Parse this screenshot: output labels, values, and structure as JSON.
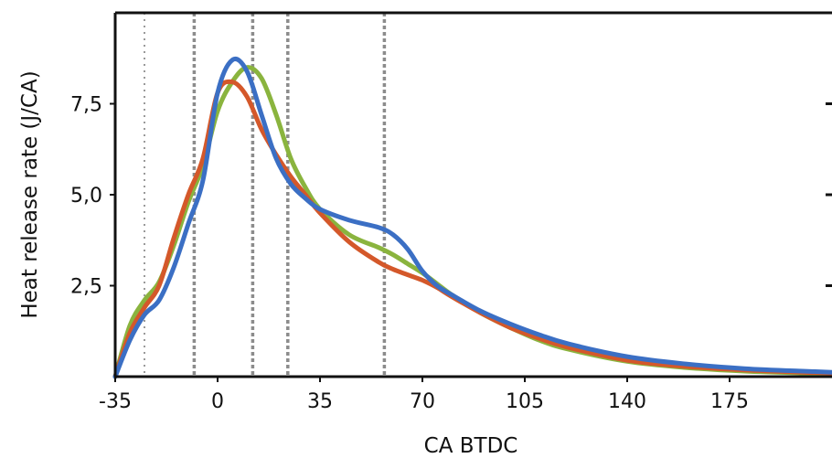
{
  "chart_data": {
    "type": "line",
    "title": "",
    "xlabel": "CA BTDC",
    "ylabel": "Heat release rate (J/CA)",
    "xlim": [
      -35,
      210
    ],
    "ylim": [
      0,
      10
    ],
    "x_ticks": [
      -35,
      0,
      35,
      70,
      105,
      140,
      175
    ],
    "x_tick_labels": [
      "-35",
      "0",
      "35",
      "70",
      "105",
      "140",
      "175"
    ],
    "y_ticks": [
      2.5,
      5.0,
      7.5
    ],
    "y_tick_labels": [
      "2,5",
      "5,0",
      "7,5"
    ],
    "grid": false,
    "legend": "none",
    "vertical_markers": [
      {
        "x": -25,
        "style": "dotted"
      },
      {
        "x": -8,
        "style": "dashed"
      },
      {
        "x": 12,
        "style": "dashed"
      },
      {
        "x": 24,
        "style": "dashed"
      },
      {
        "x": 57,
        "style": "dashed"
      }
    ],
    "series": [
      {
        "color": "#3b6fc4",
        "x": [
          -35,
          -30,
          -25,
          -20,
          -15,
          -10,
          -5,
          0,
          5,
          10,
          15,
          20,
          25,
          30,
          35,
          45,
          55,
          60,
          65,
          70,
          75,
          80,
          90,
          100,
          110,
          120,
          140,
          160,
          180,
          200,
          210
        ],
        "y": [
          0,
          1.0,
          1.7,
          2.1,
          3.0,
          4.2,
          5.4,
          7.8,
          8.7,
          8.4,
          7.2,
          6.0,
          5.3,
          4.9,
          4.6,
          4.3,
          4.1,
          3.9,
          3.5,
          2.9,
          2.5,
          2.25,
          1.8,
          1.45,
          1.15,
          0.9,
          0.55,
          0.35,
          0.22,
          0.15,
          0.12
        ]
      },
      {
        "color": "#8ab43e",
        "x": [
          -35,
          -30,
          -25,
          -20,
          -15,
          -10,
          -5,
          0,
          5,
          10,
          15,
          20,
          25,
          30,
          35,
          45,
          55,
          60,
          65,
          70,
          75,
          80,
          90,
          100,
          110,
          120,
          140,
          160,
          180,
          200,
          210
        ],
        "y": [
          0,
          1.4,
          2.1,
          2.6,
          3.6,
          4.8,
          5.8,
          7.3,
          8.1,
          8.5,
          8.2,
          7.2,
          6.0,
          5.2,
          4.6,
          3.9,
          3.55,
          3.35,
          3.1,
          2.85,
          2.55,
          2.25,
          1.75,
          1.35,
          1.0,
          0.75,
          0.42,
          0.25,
          0.15,
          0.1,
          0.08
        ]
      },
      {
        "color": "#d4582a",
        "x": [
          -35,
          -30,
          -25,
          -20,
          -15,
          -10,
          -5,
          0,
          5,
          10,
          15,
          20,
          25,
          30,
          35,
          45,
          55,
          60,
          65,
          70,
          75,
          80,
          90,
          100,
          110,
          120,
          140,
          160,
          180,
          200,
          210
        ],
        "y": [
          0,
          1.2,
          1.9,
          2.5,
          3.8,
          5.0,
          6.0,
          7.8,
          8.1,
          7.7,
          6.8,
          6.1,
          5.5,
          5.0,
          4.5,
          3.7,
          3.15,
          2.95,
          2.8,
          2.65,
          2.45,
          2.2,
          1.75,
          1.35,
          1.05,
          0.8,
          0.45,
          0.28,
          0.18,
          0.12,
          0.1
        ]
      }
    ]
  }
}
